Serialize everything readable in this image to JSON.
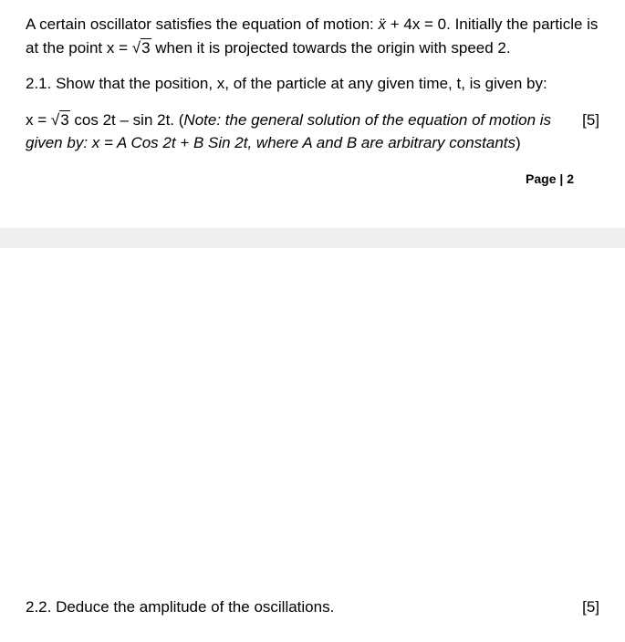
{
  "intro": {
    "part1": "A certain oscillator satisfies the equation of motion: ",
    "xddot": "x",
    "part2": " + 4x = 0. Initially the particle is at the point x = ",
    "sqrt_sym1": "√",
    "sqrt_arg1": "3",
    "part3": " when it is projected towards the origin with speed 2."
  },
  "q21": {
    "text": "2.1. Show that the position, x, of the particle at any given time, t, is given by:"
  },
  "equation": {
    "p1": "x = ",
    "sqrt_sym": "√",
    "sqrt_arg": "3",
    "p2": " cos 2t – sin 2t. (",
    "note": "Note: the general solution of the equation of motion is given by: x = A Cos 2t + B Sin 2t, where A and B are arbitrary constants",
    "p3": ")",
    "marks": "[5]"
  },
  "page": {
    "label": "Page | 2"
  },
  "q22": {
    "text": "2.2. Deduce the amplitude of the oscillations.",
    "marks": "[5]"
  }
}
